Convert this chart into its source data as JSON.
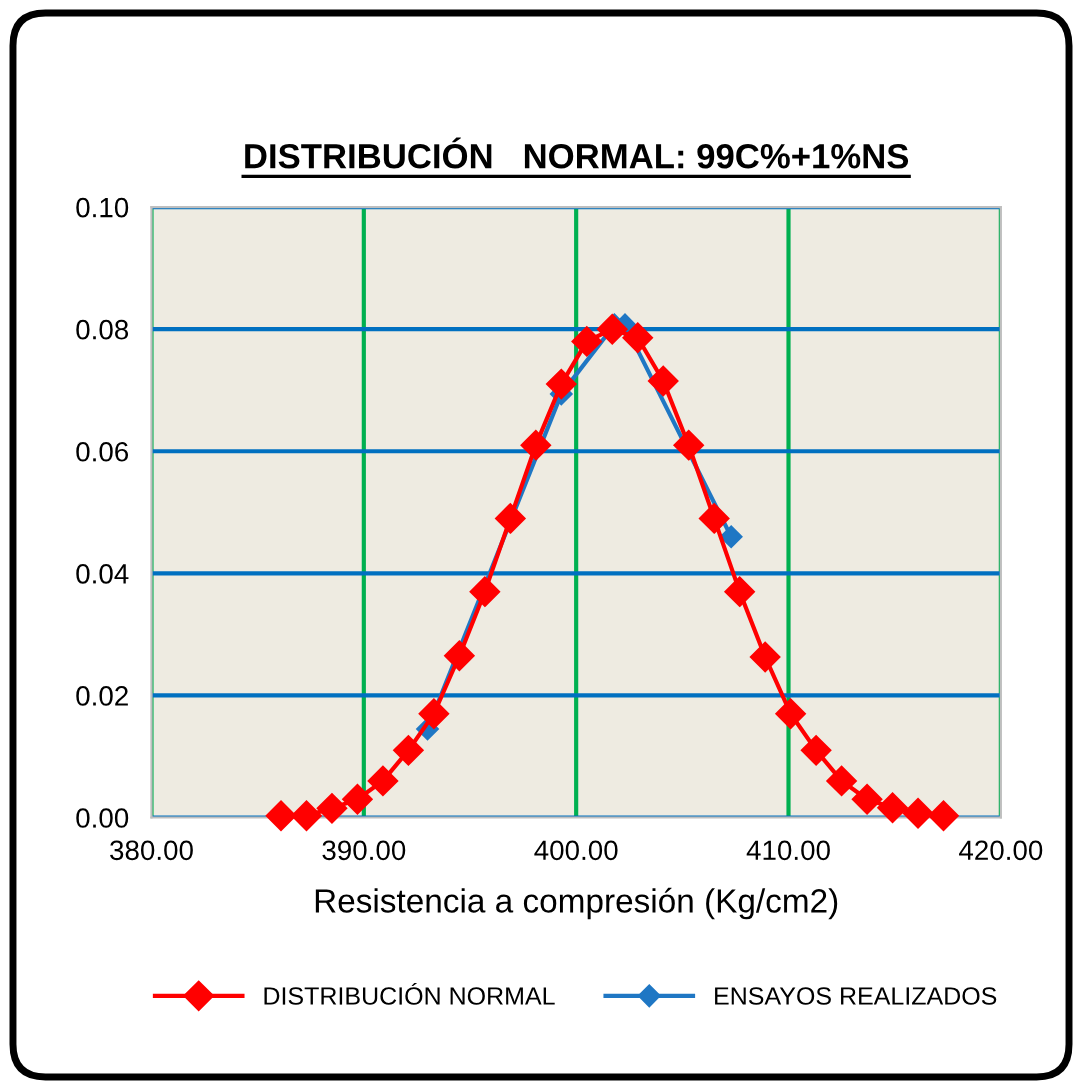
{
  "chart_data": {
    "type": "line",
    "title": "DISTRIBUCIÓN   NORMAL: 99C%+1%NS",
    "xlabel": "Resistencia a compresión (Kg/cm2)",
    "xlim": [
      380,
      420
    ],
    "xticks": [
      {
        "value": 380,
        "label": "380.00"
      },
      {
        "value": 390,
        "label": "390.00"
      },
      {
        "value": 400,
        "label": "400.00"
      },
      {
        "value": 410,
        "label": "410.00"
      },
      {
        "value": 420,
        "label": "420.00"
      }
    ],
    "ylim": [
      0,
      0.1
    ],
    "yticks": [
      {
        "value": 0,
        "label": "0.00"
      },
      {
        "value": 0.02,
        "label": "0.02"
      },
      {
        "value": 0.04,
        "label": "0.04"
      },
      {
        "value": 0.06,
        "label": "0.06"
      },
      {
        "value": 0.08,
        "label": "0.08"
      },
      {
        "value": 0.1,
        "label": "0.10"
      }
    ],
    "grid": true,
    "legend": "bottom",
    "marker": "diamond",
    "line_style": "solid",
    "series": [
      {
        "name": "DISTRIBUCIÓN NORMAL",
        "color": "#ff0000",
        "x": [
          386.1,
          387.3,
          388.5,
          389.7,
          390.9,
          392.1,
          393.3,
          394.5,
          395.7,
          396.9,
          398.1,
          399.3,
          400.5,
          401.7,
          402.9,
          404.1,
          405.3,
          406.5,
          407.7,
          408.9,
          410.1,
          411.3,
          412.5,
          413.7,
          414.9,
          416.1,
          417.3
        ],
        "values": [
          0.0003,
          0.0003,
          0.0015,
          0.003,
          0.006,
          0.011,
          0.017,
          0.0265,
          0.037,
          0.049,
          0.061,
          0.071,
          0.078,
          0.08,
          0.0786,
          0.0715,
          0.061,
          0.049,
          0.037,
          0.0263,
          0.017,
          0.011,
          0.006,
          0.003,
          0.0016,
          0.0007,
          0.0003
        ]
      },
      {
        "name": "ENSAYOS REALIZADOS",
        "color": "#1f77c4",
        "x": [
          393.0,
          399.3,
          401.8,
          402.3,
          407.3
        ],
        "values": [
          0.0145,
          0.0694,
          0.0807,
          0.0807,
          0.046
        ]
      }
    ]
  }
}
